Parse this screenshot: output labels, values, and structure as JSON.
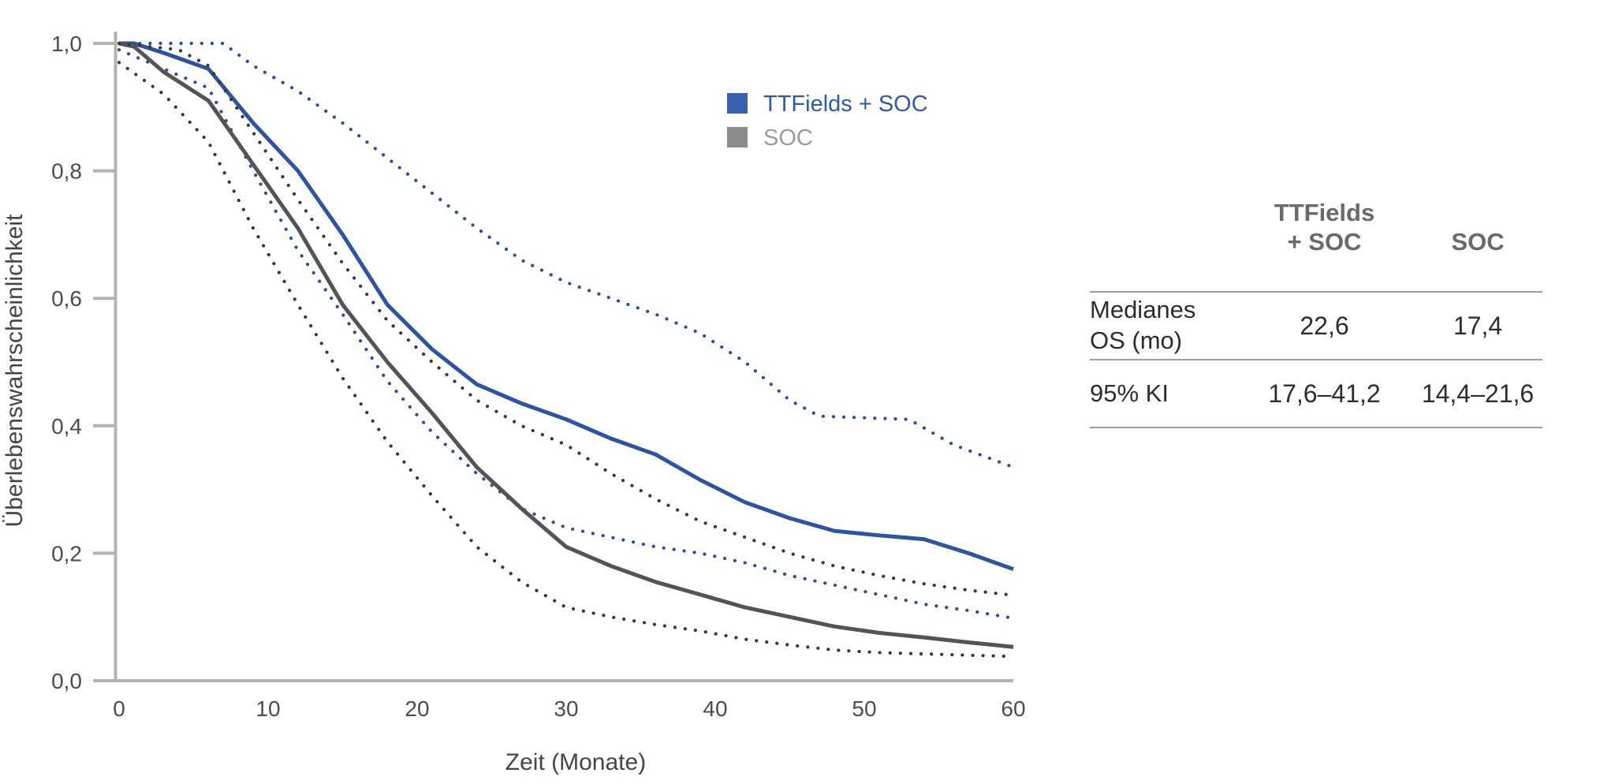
{
  "chart_data": {
    "type": "line",
    "title": "",
    "xlabel": "Zeit (Monate)",
    "ylabel": "Überlebenswahrscheinlichkeit",
    "xlim": [
      0,
      60
    ],
    "ylim": [
      0.0,
      1.0
    ],
    "grid": false,
    "legend_position": "upper-right-inside",
    "x_ticks": [
      {
        "v": 0,
        "label": "0"
      },
      {
        "v": 10,
        "label": "10"
      },
      {
        "v": 20,
        "label": "20"
      },
      {
        "v": 30,
        "label": "30"
      },
      {
        "v": 40,
        "label": "40"
      },
      {
        "v": 50,
        "label": "50"
      },
      {
        "v": 60,
        "label": "60"
      }
    ],
    "y_ticks": [
      {
        "v": 1.0,
        "label": "1,0"
      },
      {
        "v": 0.8,
        "label": "0,8"
      },
      {
        "v": 0.6,
        "label": "0,6"
      },
      {
        "v": 0.4,
        "label": "0,4"
      },
      {
        "v": 0.2,
        "label": "0,2"
      },
      {
        "v": 0.0,
        "label": "0,0"
      }
    ],
    "legend": [
      {
        "label": "TTFields + SOC",
        "swatch_color": "#3c60b0",
        "text_color": "#2d5aa9"
      },
      {
        "label": "SOC",
        "swatch_color": "#8c8c8c",
        "text_color": "#9b9b9b"
      }
    ],
    "series": [
      {
        "id": "ttfields-soc-curve",
        "name": "TTFields + SOC (medianes Überleben)",
        "style": "solid",
        "color": "#2e53a3",
        "width": 5,
        "points": [
          [
            0,
            1.0
          ],
          [
            1,
            1.0
          ],
          [
            3,
            0.985
          ],
          [
            6,
            0.96
          ],
          [
            9,
            0.875
          ],
          [
            12,
            0.8
          ],
          [
            15,
            0.7
          ],
          [
            18,
            0.59
          ],
          [
            21,
            0.52
          ],
          [
            24,
            0.465
          ],
          [
            27,
            0.435
          ],
          [
            30,
            0.41
          ],
          [
            33,
            0.38
          ],
          [
            36,
            0.355
          ],
          [
            39,
            0.315
          ],
          [
            42,
            0.28
          ],
          [
            45,
            0.255
          ],
          [
            48,
            0.235
          ],
          [
            51,
            0.228
          ],
          [
            54,
            0.222
          ],
          [
            57,
            0.2
          ],
          [
            60,
            0.175
          ]
        ]
      },
      {
        "id": "ttfields-soc-ci-upper",
        "name": "TTFields + SOC 95% KI obere Grenze",
        "style": "dotted",
        "color": "#2e4c9c",
        "width": 4.2,
        "points": [
          [
            0,
            1.0
          ],
          [
            7,
            1.0
          ],
          [
            9,
            0.965
          ],
          [
            12,
            0.925
          ],
          [
            15,
            0.875
          ],
          [
            18,
            0.82
          ],
          [
            21,
            0.765
          ],
          [
            24,
            0.71
          ],
          [
            27,
            0.66
          ],
          [
            30,
            0.625
          ],
          [
            33,
            0.6
          ],
          [
            36,
            0.575
          ],
          [
            39,
            0.545
          ],
          [
            42,
            0.5
          ],
          [
            45,
            0.44
          ],
          [
            47,
            0.415
          ],
          [
            53,
            0.41
          ],
          [
            56,
            0.37
          ],
          [
            60,
            0.335
          ]
        ]
      },
      {
        "id": "ttfields-soc-ci-lower",
        "name": "TTFields + SOC 95% KI untere Grenze",
        "style": "dotted",
        "color": "#2e4c9c",
        "width": 4.2,
        "points": [
          [
            0,
            0.99
          ],
          [
            3,
            0.96
          ],
          [
            6,
            0.93
          ],
          [
            9,
            0.8
          ],
          [
            12,
            0.675
          ],
          [
            15,
            0.575
          ],
          [
            18,
            0.47
          ],
          [
            21,
            0.39
          ],
          [
            24,
            0.325
          ],
          [
            27,
            0.27
          ],
          [
            30,
            0.24
          ],
          [
            33,
            0.225
          ],
          [
            36,
            0.21
          ],
          [
            39,
            0.2
          ],
          [
            42,
            0.185
          ],
          [
            45,
            0.165
          ],
          [
            48,
            0.15
          ],
          [
            51,
            0.135
          ],
          [
            54,
            0.12
          ],
          [
            57,
            0.11
          ],
          [
            60,
            0.098
          ]
        ]
      },
      {
        "id": "soc-curve",
        "name": "SOC (medianes Überleben)",
        "style": "solid",
        "color": "#545454",
        "width": 5,
        "points": [
          [
            0,
            1.0
          ],
          [
            1,
            0.995
          ],
          [
            3,
            0.955
          ],
          [
            6,
            0.91
          ],
          [
            9,
            0.81
          ],
          [
            12,
            0.71
          ],
          [
            15,
            0.59
          ],
          [
            18,
            0.5
          ],
          [
            21,
            0.42
          ],
          [
            24,
            0.335
          ],
          [
            27,
            0.27
          ],
          [
            30,
            0.21
          ],
          [
            33,
            0.18
          ],
          [
            36,
            0.155
          ],
          [
            39,
            0.135
          ],
          [
            42,
            0.115
          ],
          [
            45,
            0.1
          ],
          [
            48,
            0.085
          ],
          [
            51,
            0.075
          ],
          [
            54,
            0.068
          ],
          [
            57,
            0.06
          ],
          [
            60,
            0.053
          ]
        ]
      },
      {
        "id": "soc-ci-upper",
        "name": "SOC 95% KI obere Grenze",
        "style": "dotted",
        "color": "#383838",
        "width": 4.2,
        "points": [
          [
            0,
            1.0
          ],
          [
            4,
            0.99
          ],
          [
            6,
            0.965
          ],
          [
            9,
            0.86
          ],
          [
            12,
            0.755
          ],
          [
            15,
            0.655
          ],
          [
            18,
            0.565
          ],
          [
            21,
            0.5
          ],
          [
            24,
            0.44
          ],
          [
            27,
            0.4
          ],
          [
            30,
            0.37
          ],
          [
            33,
            0.325
          ],
          [
            36,
            0.285
          ],
          [
            39,
            0.25
          ],
          [
            42,
            0.225
          ],
          [
            45,
            0.2
          ],
          [
            48,
            0.18
          ],
          [
            51,
            0.165
          ],
          [
            54,
            0.152
          ],
          [
            57,
            0.142
          ],
          [
            60,
            0.134
          ]
        ]
      },
      {
        "id": "soc-ci-lower",
        "name": "SOC 95% KI untere Grenze",
        "style": "dotted",
        "color": "#383838",
        "width": 4.2,
        "points": [
          [
            0,
            0.97
          ],
          [
            3,
            0.92
          ],
          [
            6,
            0.845
          ],
          [
            9,
            0.71
          ],
          [
            12,
            0.59
          ],
          [
            15,
            0.475
          ],
          [
            18,
            0.375
          ],
          [
            21,
            0.29
          ],
          [
            24,
            0.21
          ],
          [
            27,
            0.155
          ],
          [
            30,
            0.115
          ],
          [
            33,
            0.1
          ],
          [
            36,
            0.088
          ],
          [
            39,
            0.078
          ],
          [
            42,
            0.065
          ],
          [
            45,
            0.056
          ],
          [
            48,
            0.048
          ],
          [
            51,
            0.044
          ],
          [
            54,
            0.042
          ],
          [
            57,
            0.04
          ],
          [
            60,
            0.038
          ]
        ]
      }
    ]
  },
  "table": {
    "col_headers": {
      "ttfields_soc": "TTFields\n+ SOC",
      "soc": "SOC"
    },
    "rows": [
      {
        "label": "Medianes OS (mo)",
        "ttfields_soc": "22,6",
        "soc": "17,4"
      },
      {
        "label": "95% KI",
        "ttfields_soc": "17,6–41,2",
        "soc": "14,4–21,6"
      }
    ]
  }
}
